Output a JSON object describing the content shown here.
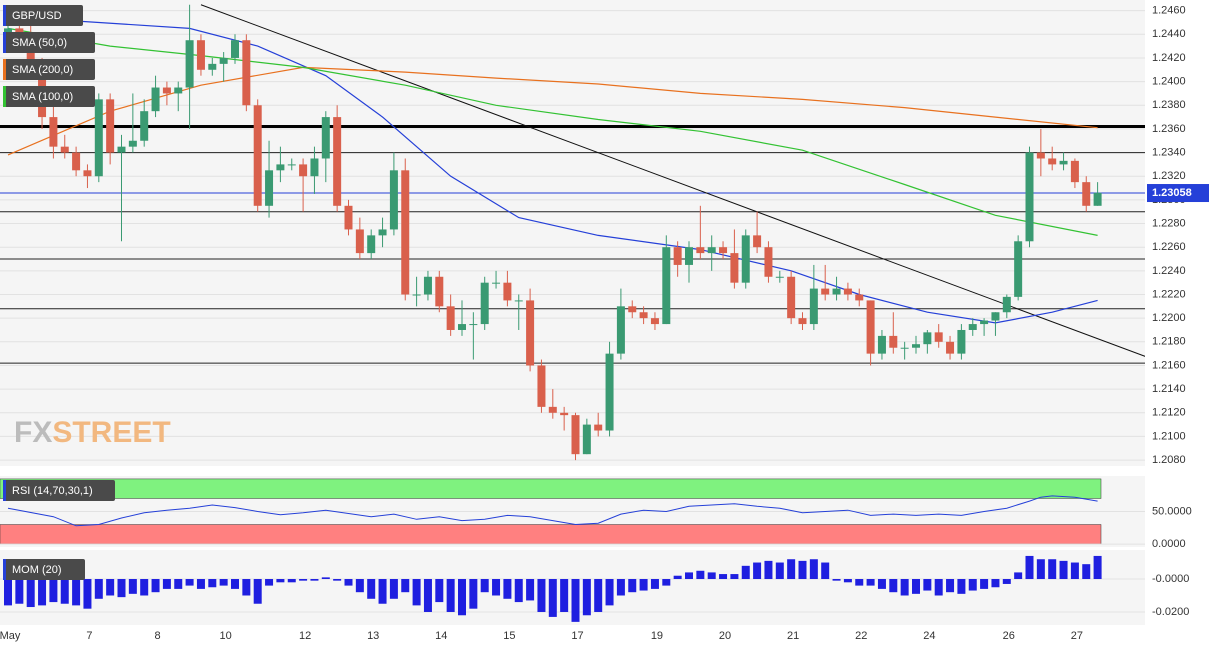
{
  "chart_data": [
    {
      "type": "candlestick",
      "title": "GBP/USD",
      "categories": [
        "May",
        null,
        null,
        null,
        null,
        null,
        null,
        "7",
        null,
        null,
        null,
        null,
        null,
        "8",
        null,
        null,
        null,
        null,
        null,
        "10",
        null,
        null,
        null,
        null,
        null,
        null,
        "12",
        null,
        null,
        null,
        null,
        null,
        "13",
        null,
        null,
        null,
        null,
        null,
        "14",
        null,
        null,
        null,
        null,
        null,
        "15",
        null,
        null,
        null,
        null,
        null,
        "17",
        null,
        null,
        null,
        null,
        null,
        null,
        "19",
        null,
        null,
        null,
        null,
        null,
        "20",
        null,
        null,
        null,
        null,
        null,
        "21",
        null,
        null,
        null,
        null,
        null,
        "22",
        null,
        null,
        null,
        null,
        null,
        "24",
        null,
        null,
        null,
        null,
        null,
        null,
        "26",
        null,
        null,
        null,
        null,
        null,
        "27",
        null,
        null
      ],
      "open": [
        1.244,
        1.2445,
        1.244,
        1.241,
        1.237,
        1.2345,
        1.234,
        1.2325,
        1.232,
        1.2385,
        1.234,
        1.2345,
        1.235,
        1.2375,
        1.2395,
        1.239,
        1.2395,
        1.2435,
        1.241,
        1.2415,
        1.242,
        1.2435,
        1.238,
        1.2295,
        1.2325,
        1.233,
        1.233,
        1.232,
        1.2335,
        1.237,
        1.2295,
        1.2275,
        1.2255,
        1.227,
        1.2275,
        1.2325,
        1.222,
        1.222,
        1.2235,
        1.221,
        1.219,
        1.2195,
        1.2195,
        1.223,
        1.223,
        1.2215,
        1.2215,
        1.216,
        1.2125,
        1.212,
        1.2118,
        1.2085,
        1.211,
        1.2105,
        1.217,
        1.221,
        1.2205,
        1.22,
        1.2195,
        1.226,
        1.2245,
        1.226,
        1.2255,
        1.226,
        1.2255,
        1.223,
        1.227,
        1.226,
        1.2235,
        1.2235,
        1.22,
        1.2195,
        1.2225,
        1.222,
        1.2225,
        1.222,
        1.2215,
        1.217,
        1.2185,
        1.2175,
        1.2175,
        1.2178,
        1.2188,
        1.218,
        1.217,
        1.219,
        1.2195,
        1.2198,
        1.2205,
        1.2218,
        1.2265,
        1.234,
        1.2335,
        1.233,
        1.2333,
        1.2315,
        1.2295
      ],
      "high": [
        1.245,
        1.2455,
        1.2448,
        1.242,
        1.2385,
        1.2355,
        1.2345,
        1.233,
        1.239,
        1.239,
        1.2355,
        1.239,
        1.2385,
        1.2405,
        1.24,
        1.24,
        1.2465,
        1.244,
        1.242,
        1.2425,
        1.244,
        1.244,
        1.2385,
        1.235,
        1.2345,
        1.2335,
        1.2335,
        1.2345,
        1.2375,
        1.238,
        1.23,
        1.2285,
        1.2275,
        1.2285,
        1.234,
        1.2335,
        1.2235,
        1.224,
        1.224,
        1.222,
        1.2215,
        1.2205,
        1.2235,
        1.224,
        1.224,
        1.222,
        1.2225,
        1.2165,
        1.214,
        1.2125,
        1.212,
        1.2115,
        1.212,
        1.218,
        1.2225,
        1.2215,
        1.221,
        1.2205,
        1.227,
        1.2265,
        1.2265,
        1.2295,
        1.227,
        1.2265,
        1.2275,
        1.2275,
        1.229,
        1.2265,
        1.224,
        1.224,
        1.2205,
        1.2245,
        1.2245,
        1.2235,
        1.223,
        1.2225,
        1.2215,
        1.219,
        1.2205,
        1.218,
        1.2185,
        1.219,
        1.2195,
        1.2185,
        1.2195,
        1.22,
        1.22,
        1.2205,
        1.222,
        1.227,
        1.2345,
        1.236,
        1.2345,
        1.234,
        1.2335,
        1.232,
        1.2315
      ],
      "low": [
        1.243,
        1.243,
        1.2405,
        1.236,
        1.2335,
        1.2335,
        1.232,
        1.231,
        1.2315,
        1.233,
        1.2265,
        1.234,
        1.2345,
        1.237,
        1.238,
        1.2375,
        1.236,
        1.2405,
        1.2405,
        1.24,
        1.2415,
        1.2375,
        1.229,
        1.2285,
        1.2315,
        1.2325,
        1.229,
        1.2305,
        1.2315,
        1.229,
        1.227,
        1.225,
        1.225,
        1.226,
        1.227,
        1.2215,
        1.221,
        1.2215,
        1.2205,
        1.2185,
        1.2185,
        1.2165,
        1.219,
        1.2225,
        1.221,
        1.219,
        1.2155,
        1.212,
        1.2115,
        1.2105,
        1.208,
        1.2085,
        1.21,
        1.21,
        1.2165,
        1.22,
        1.2195,
        1.219,
        1.2195,
        1.2235,
        1.223,
        1.225,
        1.224,
        1.225,
        1.2225,
        1.2225,
        1.2255,
        1.223,
        1.223,
        1.2195,
        1.219,
        1.219,
        1.2215,
        1.2215,
        1.2215,
        1.221,
        1.216,
        1.2165,
        1.217,
        1.2165,
        1.217,
        1.217,
        1.2175,
        1.2165,
        1.2165,
        1.2185,
        1.2185,
        1.2185,
        1.22,
        1.2215,
        1.226,
        1.232,
        1.2325,
        1.2325,
        1.231,
        1.229,
        1.2295
      ],
      "close": [
        1.2445,
        1.244,
        1.241,
        1.237,
        1.2345,
        1.234,
        1.2325,
        1.232,
        1.2385,
        1.234,
        1.2345,
        1.235,
        1.2375,
        1.2395,
        1.239,
        1.2395,
        1.2435,
        1.241,
        1.2415,
        1.242,
        1.2435,
        1.238,
        1.2295,
        1.2325,
        1.233,
        1.233,
        1.232,
        1.2335,
        1.237,
        1.2295,
        1.2275,
        1.2255,
        1.227,
        1.2275,
        1.2325,
        1.222,
        1.222,
        1.2235,
        1.221,
        1.219,
        1.2195,
        1.2195,
        1.223,
        1.223,
        1.2215,
        1.2215,
        1.216,
        1.2125,
        1.212,
        1.2118,
        1.2085,
        1.211,
        1.2105,
        1.217,
        1.221,
        1.2205,
        1.22,
        1.2195,
        1.226,
        1.2245,
        1.226,
        1.2255,
        1.226,
        1.2255,
        1.223,
        1.227,
        1.226,
        1.2235,
        1.2235,
        1.22,
        1.2195,
        1.2225,
        1.222,
        1.2225,
        1.222,
        1.2215,
        1.217,
        1.2185,
        1.2175,
        1.2175,
        1.2178,
        1.2188,
        1.218,
        1.217,
        1.219,
        1.2195,
        1.2198,
        1.2205,
        1.2218,
        1.2265,
        1.234,
        1.2335,
        1.233,
        1.2333,
        1.2315,
        1.2295,
        1.2306
      ],
      "up_color": "#3a9a72",
      "down_color": "#d9604c",
      "ylim": [
        1.2075,
        1.2469
      ],
      "yticks": [
        {
          "value": 1.208,
          "label": "1.2080"
        },
        {
          "value": 1.21,
          "label": "1.2100"
        },
        {
          "value": 1.212,
          "label": "1.2120"
        },
        {
          "value": 1.214,
          "label": "1.2140"
        },
        {
          "value": 1.216,
          "label": "1.2160"
        },
        {
          "value": 1.218,
          "label": "1.2180"
        },
        {
          "value": 1.22,
          "label": "1.2200"
        },
        {
          "value": 1.222,
          "label": "1.2220"
        },
        {
          "value": 1.224,
          "label": "1.2240"
        },
        {
          "value": 1.226,
          "label": "1.2260"
        },
        {
          "value": 1.228,
          "label": "1.2280"
        },
        {
          "value": 1.23,
          "label": "1.2300"
        },
        {
          "value": 1.232,
          "label": "1.2320"
        },
        {
          "value": 1.234,
          "label": "1.2340"
        },
        {
          "value": 1.236,
          "label": "1.2360"
        },
        {
          "value": 1.238,
          "label": "1.2380"
        },
        {
          "value": 1.24,
          "label": "1.2400"
        },
        {
          "value": 1.242,
          "label": "1.2420"
        },
        {
          "value": 1.244,
          "label": "1.2440"
        },
        {
          "value": 1.246,
          "label": "1.2460"
        }
      ],
      "grid": true,
      "series": [
        {
          "name": "SMA (50,0)",
          "color": "#2540d8",
          "x": [
            0,
            16,
            22,
            28,
            33,
            39,
            45,
            52,
            61,
            69,
            75,
            81,
            87,
            92,
            96
          ],
          "values": [
            1.2455,
            1.2445,
            1.243,
            1.2405,
            1.237,
            1.232,
            1.2285,
            1.227,
            1.2258,
            1.224,
            1.222,
            1.2205,
            1.2196,
            1.2205,
            1.2215
          ]
        },
        {
          "name": "SMA (200,0)",
          "color": "#e8711f",
          "x": [
            0,
            9,
            17,
            26,
            35,
            43,
            52,
            61,
            70,
            79,
            87,
            96
          ],
          "values": [
            1.2338,
            1.2375,
            1.2397,
            1.2412,
            1.2408,
            1.2403,
            1.2398,
            1.239,
            1.2385,
            1.2378,
            1.237,
            1.2361
          ]
        },
        {
          "name": "SMA (100,0)",
          "color": "#33c233",
          "x": [
            0,
            9,
            17,
            26,
            35,
            43,
            52,
            61,
            70,
            79,
            87,
            96
          ],
          "values": [
            1.2445,
            1.243,
            1.2422,
            1.2412,
            1.2397,
            1.238,
            1.2368,
            1.2358,
            1.2342,
            1.2313,
            1.2287,
            1.227
          ]
        }
      ],
      "levels": [
        1.234,
        1.229,
        1.225,
        1.2208,
        1.2162
      ],
      "key_level": 1.2362,
      "trendline": {
        "x": [
          17,
          101.5
        ],
        "values": [
          1.2465,
          1.2163
        ]
      },
      "last_price": {
        "value": 1.23058,
        "label": "1.23058"
      },
      "watermark": [
        "FX",
        "STREET"
      ]
    },
    {
      "type": "line",
      "title": "RSI (14,70,30,1)",
      "color": "#2540d8",
      "x": [
        0,
        4,
        6,
        8,
        10,
        12,
        14,
        16,
        18,
        20,
        22,
        24,
        26,
        28,
        30,
        32,
        34,
        36,
        38,
        40,
        42,
        44,
        46,
        48,
        50,
        52,
        54,
        56,
        58,
        60,
        62,
        64,
        66,
        68,
        70,
        72,
        74,
        76,
        78,
        80,
        82,
        84,
        86,
        88,
        90,
        91,
        92,
        94,
        96
      ],
      "values": [
        55,
        42,
        28,
        30,
        40,
        48,
        52,
        55,
        60,
        56,
        50,
        45,
        48,
        52,
        47,
        42,
        46,
        38,
        42,
        36,
        38,
        44,
        42,
        36,
        30,
        32,
        46,
        52,
        50,
        58,
        60,
        62,
        58,
        55,
        48,
        50,
        52,
        44,
        46,
        44,
        46,
        44,
        50,
        55,
        66,
        72,
        74,
        72,
        66
      ],
      "bands": [
        {
          "from": 70,
          "to": 100,
          "color": "#7ff27f"
        },
        {
          "from": 0,
          "to": 30,
          "color": "#ff8080"
        }
      ],
      "ylim": [
        -4.5,
        104.5
      ],
      "yticks": [
        {
          "value": 50,
          "label": "50.0000"
        },
        {
          "value": 0,
          "label": "0.0000"
        }
      ]
    },
    {
      "type": "bar",
      "title": "MOM (20)",
      "color": "#1f1fe0",
      "values": [
        -0.016,
        -0.015,
        -0.017,
        -0.016,
        -0.014,
        -0.015,
        -0.016,
        -0.018,
        -0.012,
        -0.01,
        -0.011,
        -0.009,
        -0.01,
        -0.008,
        -0.006,
        -0.006,
        -0.004,
        -0.006,
        -0.005,
        -0.004,
        -0.006,
        -0.01,
        -0.015,
        -0.004,
        -0.002,
        -0.002,
        -0.001,
        -0.001,
        0.001,
        -0.001,
        -0.004,
        -0.008,
        -0.012,
        -0.015,
        -0.012,
        -0.008,
        -0.016,
        -0.02,
        -0.014,
        -0.02,
        -0.022,
        -0.018,
        -0.008,
        -0.01,
        -0.012,
        -0.014,
        -0.013,
        -0.02,
        -0.023,
        -0.02,
        -0.026,
        -0.022,
        -0.02,
        -0.016,
        -0.01,
        -0.008,
        -0.007,
        -0.006,
        -0.004,
        0.002,
        0.004,
        0.005,
        0.004,
        0.003,
        0.003,
        0.008,
        0.01,
        0.011,
        0.01,
        0.012,
        0.011,
        0.012,
        0.01,
        -0.001,
        -0.002,
        -0.004,
        -0.004,
        -0.006,
        -0.008,
        -0.01,
        -0.009,
        -0.007,
        -0.01,
        -0.008,
        -0.009,
        -0.007,
        -0.006,
        -0.005,
        -0.003,
        0.004,
        0.014,
        0.012,
        0.012,
        0.011,
        0.01,
        0.009,
        0.014
      ],
      "ylim": [
        -0.0279,
        0.0176
      ],
      "yticks": [
        {
          "value": 0,
          "label": "-0.0000"
        },
        {
          "value": -0.02,
          "label": "-0.0200"
        }
      ]
    }
  ]
}
